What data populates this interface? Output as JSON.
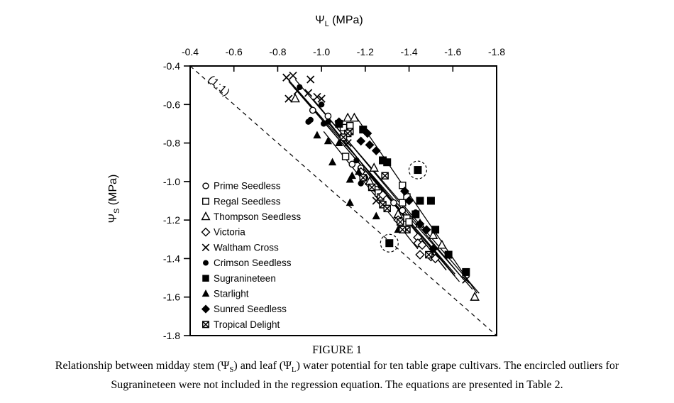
{
  "caption": {
    "title": "FIGURE 1",
    "p1": "Relationship between midday stem (Ψ",
    "sub1": "S",
    "p2": ") and leaf (Ψ",
    "sub2": "L",
    "p3": ") water potential for ten table grape cultivars. The encircled outliers for",
    "line2": "Sugranineteen were not included in the regression equation. The equations are presented in Table 2."
  },
  "chart_data": {
    "type": "scatter",
    "xlabel": {
      "base": "Ψ",
      "sub": "L",
      "rest": " (MPa)"
    },
    "ylabel": {
      "base": "Ψ",
      "sub": "S",
      "rest": " (MPa)"
    },
    "xlim": [
      -0.4,
      -1.8
    ],
    "ylim": [
      -0.4,
      -1.8
    ],
    "x_tick_labels": [
      "-0.4",
      "-0.6",
      "-0.8",
      "-1.0",
      "-1.2",
      "-1.4",
      "-1.6",
      "-1.8"
    ],
    "y_tick_labels": [
      "-0.4",
      "-0.6",
      "-0.8",
      "-1.0",
      "-1.2",
      "-1.4",
      "-1.6",
      "-1.8"
    ],
    "x_ticks": [
      -0.4,
      -0.6,
      -0.8,
      -1.0,
      -1.2,
      -1.4,
      -1.6,
      -1.8
    ],
    "y_ticks": [
      -0.4,
      -0.6,
      -0.8,
      -1.0,
      -1.2,
      -1.4,
      -1.6,
      -1.8
    ],
    "grid": false,
    "legend_position": "inside left",
    "identity_line": {
      "label": "(1:1)",
      "style": "dashed",
      "from": [
        -0.4,
        -0.4
      ],
      "to": [
        -1.8,
        -1.8
      ]
    },
    "axis_color": "#000000",
    "marker_color": "#000000",
    "series": [
      {
        "name": "Prime Seedless",
        "marker": "circle-open",
        "size": 9,
        "points": [
          [
            -0.96,
            -0.63
          ],
          [
            -1.03,
            -0.66
          ],
          [
            -1.08,
            -0.7
          ],
          [
            -1.14,
            -0.91
          ],
          [
            -1.18,
            -0.93
          ],
          [
            -1.25,
            -1.04
          ],
          [
            -1.33,
            -1.11
          ],
          [
            -1.37,
            -1.15
          ]
        ],
        "line": [
          [
            -0.87,
            -0.5
          ],
          [
            -1.63,
            -1.52
          ]
        ]
      },
      {
        "name": "Regal Seedless",
        "marker": "square-open",
        "size": 9,
        "points": [
          [
            -1.1,
            -0.72
          ],
          [
            -1.13,
            -0.71
          ],
          [
            -1.11,
            -0.87
          ],
          [
            -1.26,
            -1.06
          ],
          [
            -1.27,
            -1.08
          ],
          [
            -1.37,
            -1.02
          ],
          [
            -1.39,
            -1.08
          ],
          [
            -1.37,
            -1.11
          ],
          [
            -1.39,
            -1.19
          ],
          [
            -1.4,
            -1.21
          ]
        ],
        "line": [
          [
            -0.96,
            -0.57
          ],
          [
            -1.65,
            -1.51
          ]
        ]
      },
      {
        "name": "Thompson Seedless",
        "marker": "triangle-open",
        "size": 10,
        "points": [
          [
            -0.88,
            -0.57
          ],
          [
            -1.12,
            -0.67
          ],
          [
            -1.15,
            -0.67
          ],
          [
            -1.24,
            -0.93
          ],
          [
            -1.22,
            -1.0
          ],
          [
            -1.35,
            -1.17
          ],
          [
            -1.45,
            -1.22
          ],
          [
            -1.51,
            -1.28
          ],
          [
            -1.55,
            -1.33
          ],
          [
            -1.7,
            -1.6
          ]
        ],
        "line": [
          [
            -0.88,
            -0.47
          ],
          [
            -1.72,
            -1.58
          ]
        ]
      },
      {
        "name": "Victoria",
        "marker": "diamond-open",
        "size": 9,
        "points": [
          [
            -1.18,
            -0.95
          ],
          [
            -1.28,
            -1.07
          ],
          [
            -1.35,
            -1.2
          ],
          [
            -1.44,
            -1.29
          ],
          [
            -1.44,
            -1.32
          ],
          [
            -1.46,
            -1.33
          ],
          [
            -1.45,
            -1.38
          ],
          [
            -1.5,
            -1.39
          ],
          [
            -1.52,
            -1.4
          ]
        ],
        "line": [
          [
            -1.02,
            -0.68
          ],
          [
            -1.61,
            -1.49
          ]
        ]
      },
      {
        "name": "Waltham Cross",
        "marker": "x",
        "size": 10,
        "points": [
          [
            -0.84,
            -0.46
          ],
          [
            -0.87,
            -0.45
          ],
          [
            -0.95,
            -0.47
          ],
          [
            -0.89,
            -0.53
          ],
          [
            -0.94,
            -0.54
          ],
          [
            -0.85,
            -0.57
          ],
          [
            -0.98,
            -0.56
          ],
          [
            -1.0,
            -0.57
          ],
          [
            -1.12,
            -0.8
          ],
          [
            -1.25,
            -1.1
          ],
          [
            -1.66,
            -1.51
          ]
        ],
        "line": [
          [
            -0.84,
            -0.46
          ],
          [
            -1.69,
            -1.56
          ]
        ]
      },
      {
        "name": "Crimson Seedless",
        "marker": "circle-filled",
        "size": 9,
        "points": [
          [
            -0.9,
            -0.51
          ],
          [
            -1.0,
            -0.6
          ],
          [
            -0.94,
            -0.69
          ],
          [
            -0.95,
            -0.68
          ],
          [
            -1.01,
            -0.7
          ],
          [
            -1.03,
            -0.69
          ],
          [
            -1.16,
            -0.89
          ],
          [
            -1.2,
            -0.98
          ],
          [
            -1.18,
            -1.01
          ],
          [
            -1.43,
            -1.16
          ]
        ],
        "line": [
          [
            -0.85,
            -0.48
          ],
          [
            -1.61,
            -1.48
          ]
        ]
      },
      {
        "name": "Sugranineteen",
        "marker": "square-filled",
        "size": 11,
        "points": [
          [
            -1.08,
            -0.7
          ],
          [
            -1.19,
            -0.73
          ],
          [
            -1.28,
            -0.89
          ],
          [
            -1.3,
            -0.9
          ],
          [
            -1.45,
            -1.1
          ],
          [
            -1.5,
            -1.1
          ],
          [
            -1.43,
            -1.17
          ],
          [
            -1.52,
            -1.25
          ],
          [
            -1.58,
            -1.38
          ],
          [
            -1.66,
            -1.47
          ]
        ],
        "line": [
          [
            -1.15,
            -0.65
          ],
          [
            -1.71,
            -1.58
          ]
        ]
      },
      {
        "name": "Starlight",
        "marker": "triangle-filled",
        "size": 10,
        "points": [
          [
            -0.98,
            -0.76
          ],
          [
            -1.03,
            -0.79
          ],
          [
            -1.08,
            -0.8
          ],
          [
            -1.05,
            -0.9
          ],
          [
            -1.14,
            -0.97
          ],
          [
            -1.17,
            -0.95
          ],
          [
            -1.13,
            -0.99
          ],
          [
            -1.13,
            -1.11
          ],
          [
            -1.25,
            -1.18
          ],
          [
            -1.35,
            -1.25
          ]
        ],
        "line": [
          [
            -1.01,
            -0.74
          ],
          [
            -1.44,
            -1.35
          ]
        ]
      },
      {
        "name": "Sunred Seedless",
        "marker": "diamond-filled",
        "size": 10,
        "points": [
          [
            -1.08,
            -0.69
          ],
          [
            -1.21,
            -0.75
          ],
          [
            -1.18,
            -0.79
          ],
          [
            -1.22,
            -0.81
          ],
          [
            -1.25,
            -0.84
          ],
          [
            -1.38,
            -1.05
          ],
          [
            -1.4,
            -1.1
          ],
          [
            -1.45,
            -1.22
          ],
          [
            -1.48,
            -1.25
          ],
          [
            -1.51,
            -1.35
          ]
        ],
        "line": [
          [
            -1.04,
            -0.7
          ],
          [
            -1.57,
            -1.46
          ]
        ]
      },
      {
        "name": "Tropical Delight",
        "marker": "square-x",
        "size": 9,
        "points": [
          [
            -1.13,
            -0.74
          ],
          [
            -1.12,
            -0.75
          ],
          [
            -1.1,
            -0.77
          ],
          [
            -1.19,
            -0.98
          ],
          [
            -1.29,
            -0.97
          ],
          [
            -1.23,
            -1.03
          ],
          [
            -1.28,
            -1.12
          ],
          [
            -1.3,
            -1.14
          ],
          [
            -1.36,
            -1.21
          ],
          [
            -1.39,
            -1.25
          ],
          [
            -1.37,
            -1.25
          ],
          [
            -1.49,
            -1.38
          ]
        ],
        "line": [
          [
            -1.04,
            -0.7
          ],
          [
            -1.57,
            -1.46
          ]
        ]
      }
    ],
    "circled_outliers": {
      "series": "Sugranineteen",
      "marker": "square-filled",
      "points": [
        [
          -1.44,
          -0.94
        ],
        [
          -1.31,
          -1.32
        ]
      ]
    }
  }
}
